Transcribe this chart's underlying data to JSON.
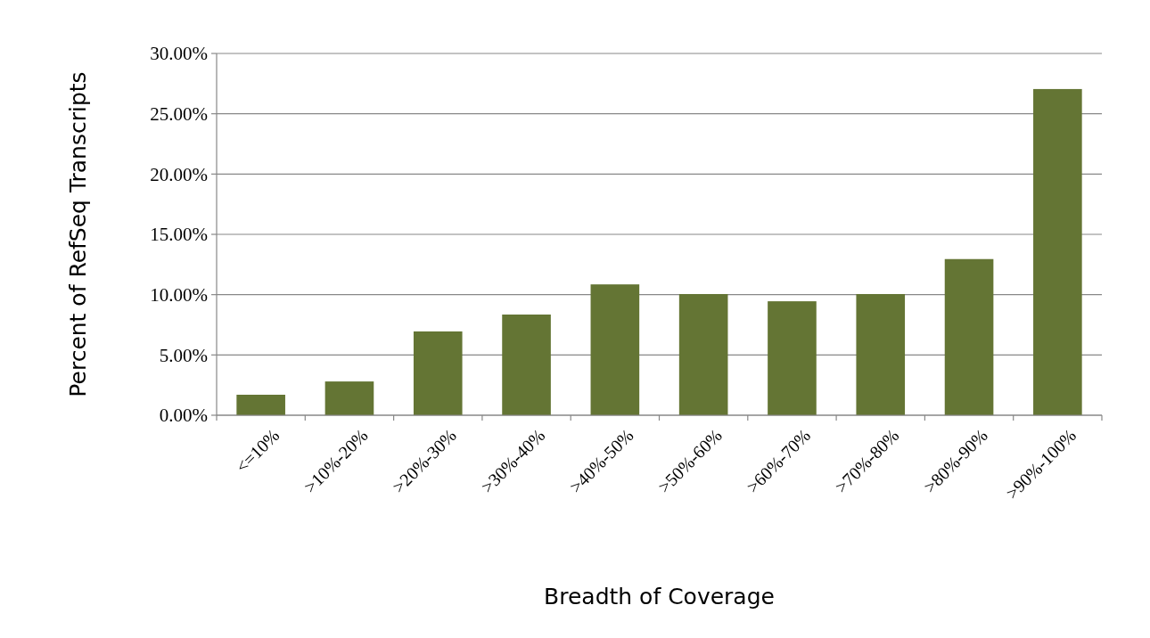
{
  "chart_data": {
    "type": "bar",
    "xlabel": "Breadth of Coverage",
    "ylabel": "Percent of RefSeq Transcripts",
    "categories": [
      "<=10%",
      ">10%-20%",
      ">20%-30%",
      ">30%-40%",
      ">40%-50%",
      ">50%-60%",
      ">60%-70%",
      ">70%-80%",
      ">80%-90%",
      ">90%-100%"
    ],
    "values": [
      1.7,
      2.8,
      6.95,
      8.35,
      10.85,
      10.05,
      9.45,
      10.05,
      12.95,
      27.05
    ],
    "color": "#647534",
    "ylim": [
      0,
      30
    ],
    "yticks": [
      {
        "value": 0,
        "label": "0.00%"
      },
      {
        "value": 5,
        "label": "5.00%"
      },
      {
        "value": 10,
        "label": "10.00%"
      },
      {
        "value": 15,
        "label": "15.00%"
      },
      {
        "value": 20,
        "label": "20.00%"
      },
      {
        "value": 25,
        "label": "25.00%"
      },
      {
        "value": 30,
        "label": "30.00%"
      }
    ],
    "grid": "y"
  }
}
